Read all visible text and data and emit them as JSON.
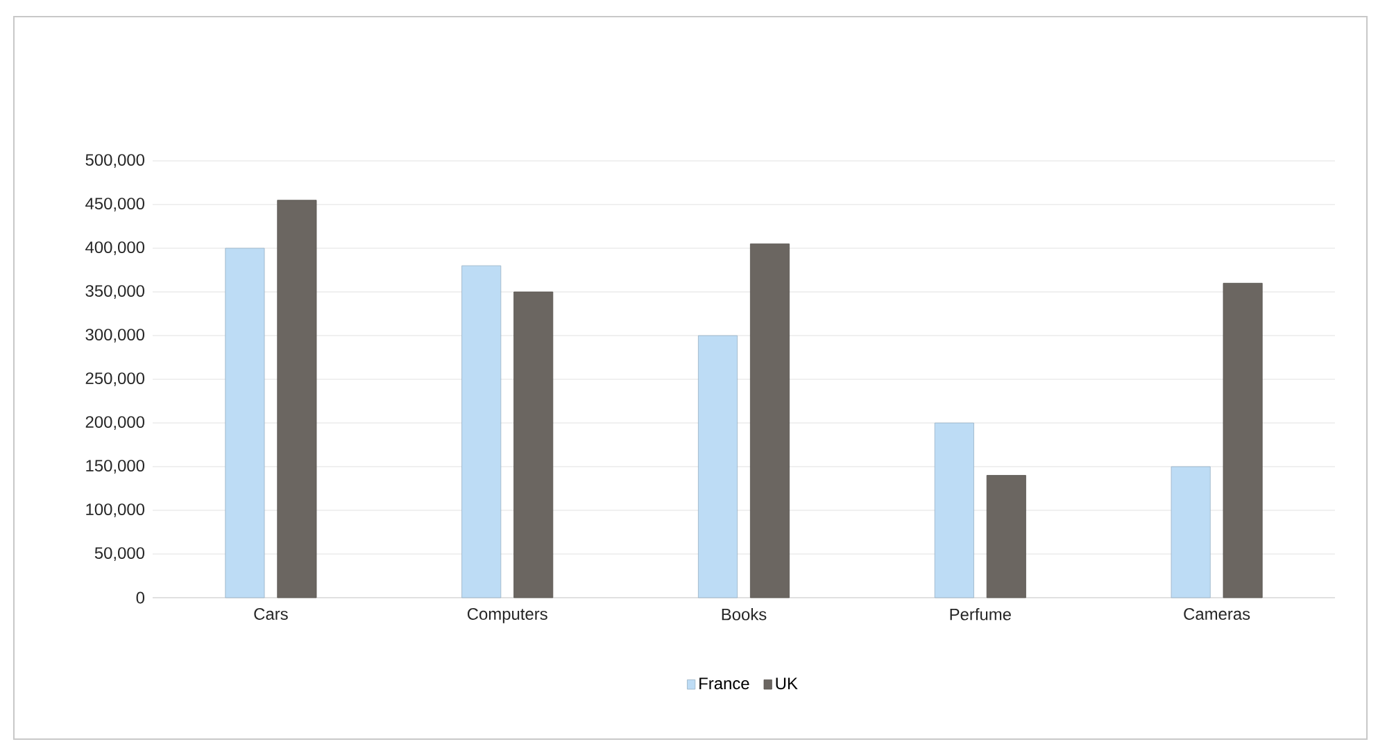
{
  "chart_data": {
    "type": "bar",
    "categories": [
      "Cars",
      "Computers",
      "Books",
      "Perfume",
      "Cameras"
    ],
    "series": [
      {
        "name": "France",
        "color": "#bddcf5",
        "values": [
          400000,
          380000,
          300000,
          200000,
          150000
        ]
      },
      {
        "name": "UK",
        "color": "#6b6661",
        "values": [
          455000,
          350000,
          405000,
          140000,
          360000
        ]
      }
    ],
    "ylim": [
      0,
      500000
    ],
    "yticks": [
      0,
      {
        "value": 50000,
        "label": "50,000"
      },
      {
        "value": 100000,
        "label": "100,000"
      },
      {
        "value": 150000,
        "label": "150,000"
      },
      {
        "value": 200000,
        "label": "200,000"
      },
      {
        "value": 250000,
        "label": "250,000"
      },
      {
        "value": 300000,
        "label": "300,000"
      },
      {
        "value": 350000,
        "label": "350,000"
      },
      {
        "value": 400000,
        "label": "400,000"
      },
      {
        "value": 450000,
        "label": "450,000"
      },
      {
        "value": 500000,
        "label": "500,000"
      }
    ],
    "grid": "y",
    "legend": "bottom"
  }
}
